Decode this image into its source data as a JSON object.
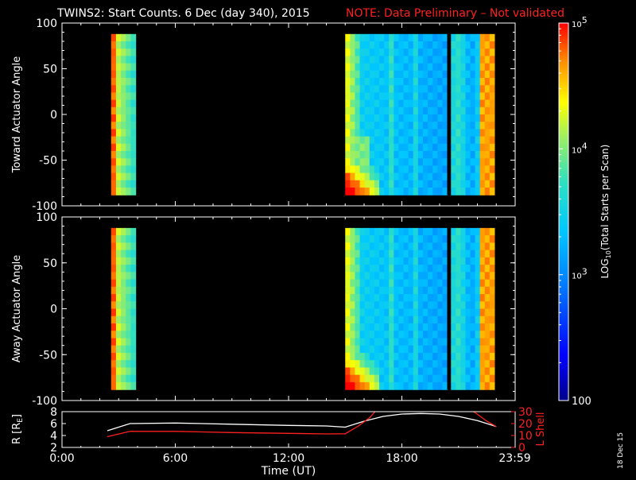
{
  "title": {
    "main": "TWINS2: Start Counts.  6 Dec (day 340), 2015",
    "note": "NOTE: Data Preliminary – Not validated",
    "main_color": "#ffffff",
    "note_color": "#ff2020"
  },
  "stamp": "18 Dec 15",
  "chart_data": [
    {
      "type": "heatmap",
      "panel": "toward",
      "ylabel": "Toward Actuator Angle",
      "ylim": [
        -100,
        100
      ],
      "yticks": [
        -100,
        -50,
        0,
        50,
        100
      ],
      "x_unit": "hours UT",
      "data_extent": {
        "y": [
          -88,
          88
        ]
      },
      "blocks": [
        {
          "x": [
            2.6,
            3.9
          ],
          "pattern": "early"
        },
        {
          "x": [
            15.0,
            20.4
          ],
          "pattern": "main"
        },
        {
          "x": [
            20.4,
            20.6
          ],
          "pattern": "gap"
        },
        {
          "x": [
            20.6,
            22.9
          ],
          "pattern": "late"
        }
      ]
    },
    {
      "type": "heatmap",
      "panel": "away",
      "ylabel": "Away Actuator Angle",
      "ylim": [
        -100,
        100
      ],
      "yticks": [
        -100,
        -50,
        0,
        50,
        100
      ],
      "x_unit": "hours UT",
      "data_extent": {
        "y": [
          -88,
          88
        ]
      },
      "blocks": [
        {
          "x": [
            2.6,
            3.9
          ],
          "pattern": "early"
        },
        {
          "x": [
            15.0,
            20.4
          ],
          "pattern": "main"
        },
        {
          "x": [
            20.4,
            20.6
          ],
          "pattern": "gap"
        },
        {
          "x": [
            20.6,
            22.9
          ],
          "pattern": "late"
        }
      ]
    },
    {
      "type": "line",
      "panel": "orbit",
      "ylabel_left": "R [R",
      "ylabel_left_sub": "E",
      "ylabel_left_close": "]",
      "ylabel_right": "L Shell",
      "ylim_left": [
        2,
        8
      ],
      "yticks_left": [
        2,
        4,
        6,
        8
      ],
      "ylim_right": [
        0,
        30
      ],
      "yticks_right": [
        0,
        10,
        20,
        30
      ],
      "series": [
        {
          "color": "#ffffff",
          "axis": "left",
          "points": [
            [
              2.4,
              4.8
            ],
            [
              3.6,
              6.0
            ],
            [
              6,
              6.1
            ],
            [
              9,
              5.9
            ],
            [
              12,
              5.7
            ],
            [
              14,
              5.6
            ],
            [
              15,
              5.4
            ],
            [
              16,
              6.4
            ],
            [
              17,
              7.2
            ],
            [
              18,
              7.6
            ],
            [
              19,
              7.7
            ],
            [
              20,
              7.6
            ],
            [
              21,
              7.2
            ],
            [
              22,
              6.5
            ],
            [
              23,
              5.5
            ]
          ]
        },
        {
          "color": "#ff2020",
          "axis": "right",
          "segments": [
            [
              [
                2.4,
                9
              ],
              [
                3.6,
                13.5
              ],
              [
                6,
                13.5
              ],
              [
                9,
                12.5
              ],
              [
                12,
                11.8
              ],
              [
                14,
                11.3
              ],
              [
                15,
                11.5
              ],
              [
                15.7,
                18
              ],
              [
                16.3,
                25
              ],
              [
                16.8,
                34
              ]
            ],
            [
              [
                21.4,
                34
              ],
              [
                21.9,
                29
              ],
              [
                22.5,
                22
              ],
              [
                23,
                17.5
              ]
            ]
          ]
        }
      ]
    },
    {
      "type": "colorbar",
      "label_parts": [
        "LOG",
        "10",
        "(Total Starts per Scan)"
      ],
      "scale": "log",
      "range": [
        100,
        100000
      ],
      "ticks": [
        {
          "value": 100,
          "mantissa": "100"
        },
        {
          "value": 1000,
          "mantissa": "10",
          "exponent": "3"
        },
        {
          "value": 10000,
          "mantissa": "10",
          "exponent": "4"
        },
        {
          "value": 100000,
          "mantissa": "10",
          "exponent": "5"
        }
      ]
    }
  ],
  "time_axis": {
    "xlim": [
      0,
      24
    ],
    "ticks": [
      {
        "value": 0,
        "label": "0:00"
      },
      {
        "value": 6,
        "label": "6:00"
      },
      {
        "value": 12,
        "label": "12:00"
      },
      {
        "value": 18,
        "label": "18:00"
      },
      {
        "value": 23.98,
        "label": "23:59"
      }
    ],
    "label": "Time (UT)"
  }
}
